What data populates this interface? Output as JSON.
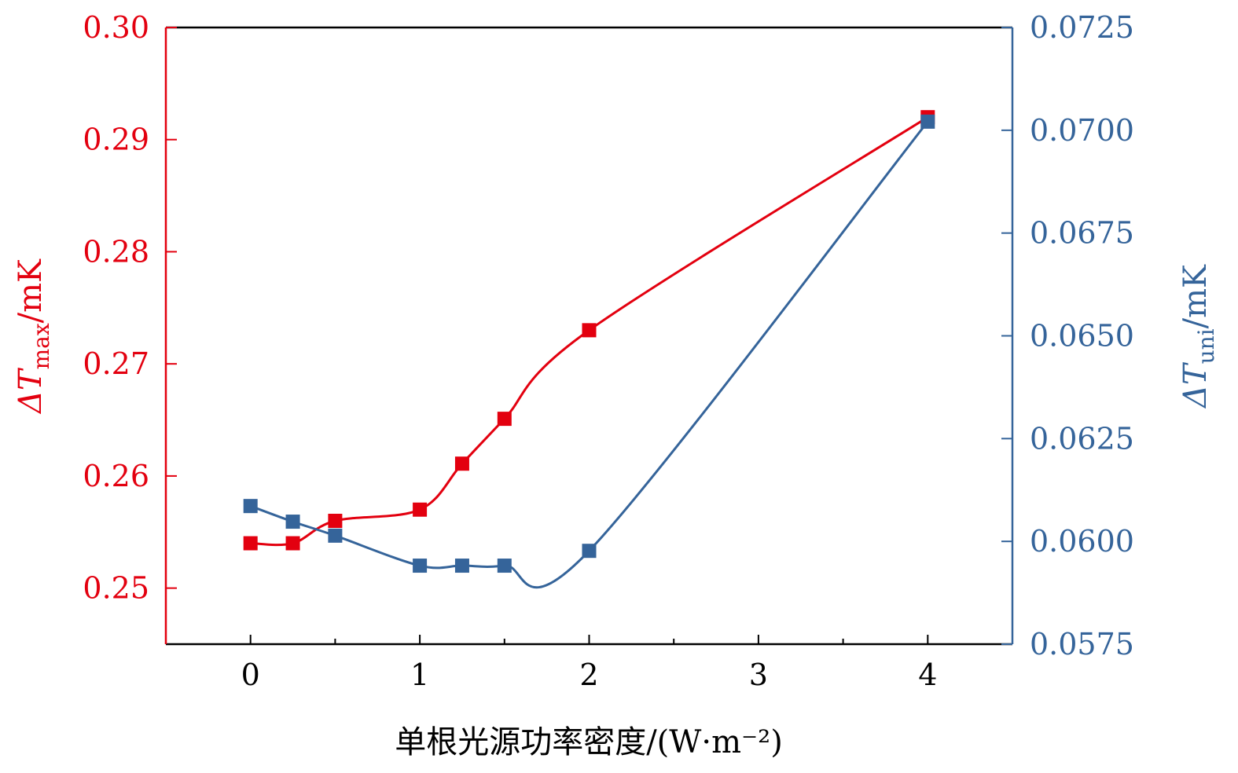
{
  "chart_data": {
    "type": "line",
    "title": "",
    "xlabel": "单根光源功率密度/(W·m⁻²)",
    "xlim": [
      -0.5,
      4.5
    ],
    "x_ticks": [
      0,
      1,
      2,
      3,
      4
    ],
    "x_tick_labels": [
      "0",
      "1",
      "2",
      "3",
      "4"
    ],
    "y_left": {
      "label_main": "ΔT",
      "label_sub": "max",
      "label_unit": "/mK",
      "ylim": [
        0.245,
        0.3
      ],
      "ticks": [
        0.25,
        0.26,
        0.27,
        0.28,
        0.29,
        0.3
      ],
      "tick_labels": [
        "0.25",
        "0.26",
        "0.27",
        "0.28",
        "0.29",
        "0.30"
      ],
      "color": "#e3000f"
    },
    "y_right": {
      "label_main": "ΔT",
      "label_sub": "uni",
      "label_unit": "/mK",
      "ylim": [
        0.0575,
        0.0725
      ],
      "ticks": [
        0.0575,
        0.06,
        0.0625,
        0.065,
        0.0675,
        0.07,
        0.0725
      ],
      "tick_labels": [
        "0.0575",
        "0.0600",
        "0.0625",
        "0.0650",
        "0.0675",
        "0.0700",
        "0.0725"
      ],
      "color": "#35649a"
    },
    "series": [
      {
        "name": "ΔT_max",
        "axis": "left",
        "marker": "square",
        "color": "#e3000f",
        "x": [
          0,
          0.25,
          0.5,
          1,
          1.25,
          1.5,
          2,
          4
        ],
        "y": [
          0.254,
          0.254,
          0.256,
          0.257,
          0.2611,
          0.2651,
          0.273,
          0.292
        ]
      },
      {
        "name": "ΔT_uni",
        "axis": "right",
        "marker": "square",
        "color": "#35649a",
        "x": [
          0,
          0.25,
          0.5,
          1,
          1.25,
          1.5,
          2,
          4
        ],
        "y": [
          0.06086,
          0.06048,
          0.06014,
          0.05941,
          0.05941,
          0.05941,
          0.05977,
          0.07021
        ]
      }
    ],
    "grid": false,
    "legend": "none"
  }
}
